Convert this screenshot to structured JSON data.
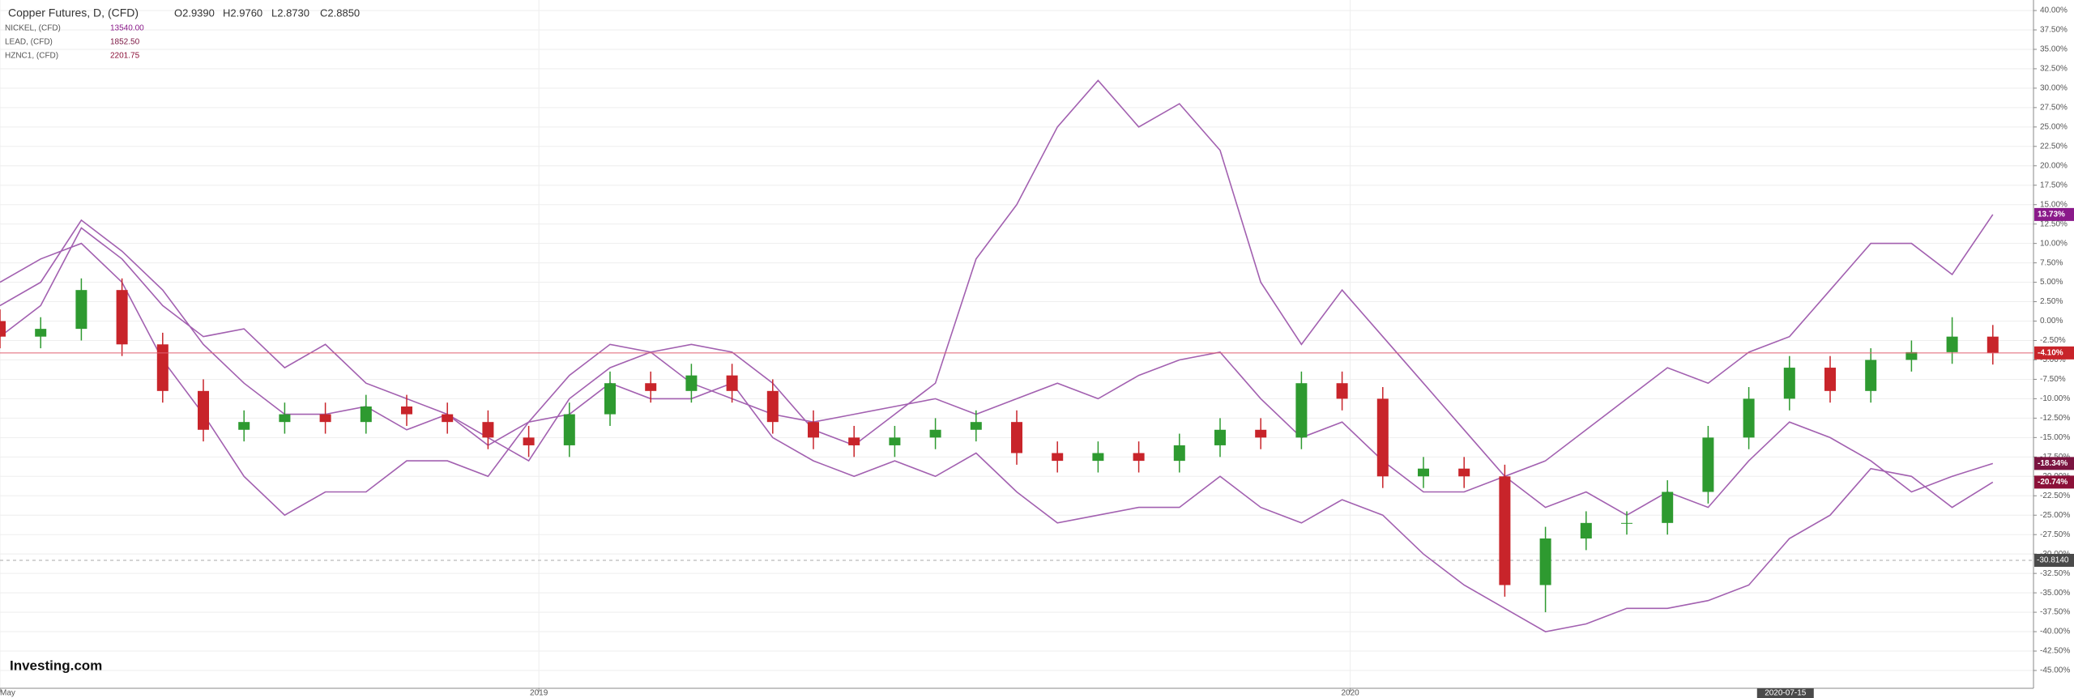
{
  "chart_data": {
    "type": "candlestick-compare",
    "header": {
      "name": "Copper Futures, D, (CFD)",
      "ohlc": [
        "O2.9390",
        "H2.9760",
        "L2.8730",
        "C2.8850"
      ]
    },
    "logo": "Investing.com",
    "x": [
      0,
      2,
      4,
      6,
      8,
      10,
      12,
      14,
      16,
      18,
      20,
      22,
      24,
      26,
      28,
      30,
      32,
      34,
      36,
      38,
      40,
      42,
      44,
      46,
      48,
      50,
      52,
      54,
      56,
      58,
      60,
      62,
      64,
      66,
      68,
      70,
      72,
      74,
      76,
      78,
      80,
      82,
      84,
      86,
      88,
      90,
      92,
      94,
      96,
      98
    ],
    "xlim": [
      0,
      100
    ],
    "xticks": [
      {
        "value": 0,
        "label": "May"
      },
      {
        "value": 26.5,
        "label": "2019"
      },
      {
        "value": 66.4,
        "label": "2020"
      }
    ],
    "ylim": [
      -45,
      40
    ],
    "yticks": [
      {
        "value": 40,
        "label": "40.00%"
      },
      {
        "value": 37.5,
        "label": "37.50%"
      },
      {
        "value": 35,
        "label": "35.00%"
      },
      {
        "value": 32.5,
        "label": "32.50%"
      },
      {
        "value": 30,
        "label": "30.00%"
      },
      {
        "value": 27.5,
        "label": "27.50%"
      },
      {
        "value": 25,
        "label": "25.00%"
      },
      {
        "value": 22.5,
        "label": "22.50%"
      },
      {
        "value": 20,
        "label": "20.00%"
      },
      {
        "value": 17.5,
        "label": "17.50%"
      },
      {
        "value": 15,
        "label": "15.00%"
      },
      {
        "value": 12.5,
        "label": "12.50%"
      },
      {
        "value": 10,
        "label": "10.00%"
      },
      {
        "value": 7.5,
        "label": "7.50%"
      },
      {
        "value": 5,
        "label": "5.00%"
      },
      {
        "value": 2.5,
        "label": "2.50%"
      },
      {
        "value": 0,
        "label": "0.00%"
      },
      {
        "value": -2.5,
        "label": "-2.50%"
      },
      {
        "value": -5,
        "label": "-5.00%"
      },
      {
        "value": -7.5,
        "label": "-7.50%"
      },
      {
        "value": -10,
        "label": "-10.00%"
      },
      {
        "value": -12.5,
        "label": "-12.50%"
      },
      {
        "value": -15,
        "label": "-15.00%"
      },
      {
        "value": -17.5,
        "label": "-17.50%"
      },
      {
        "value": -20,
        "label": "-20.00%"
      },
      {
        "value": -22.5,
        "label": "-22.50%"
      },
      {
        "value": -25,
        "label": "-25.00%"
      },
      {
        "value": -27.5,
        "label": "-27.50%"
      },
      {
        "value": -30,
        "label": "-30.00%"
      },
      {
        "value": -32.5,
        "label": "-32.50%"
      },
      {
        "value": -35,
        "label": "-35.00%"
      },
      {
        "value": -37.5,
        "label": "-37.50%"
      },
      {
        "value": -40,
        "label": "-40.00%"
      },
      {
        "value": -42.5,
        "label": "-42.50%"
      },
      {
        "value": -45,
        "label": "-45.00%"
      }
    ],
    "grid": true,
    "candles": {
      "up_color": "#2e9a30",
      "down_color": "#c8242a",
      "line_color": "#e06070",
      "last_label": "-4.10%",
      "open": [
        0,
        -2,
        -1,
        4,
        -3,
        -9,
        -14,
        -13,
        -12,
        -13,
        -11,
        -12,
        -13,
        -15,
        -16,
        -12,
        -8,
        -9,
        -7,
        -9,
        -13,
        -15,
        -16,
        -15,
        -14,
        -13,
        -17,
        -18,
        -17,
        -18,
        -16,
        -14,
        -15,
        -8,
        -10,
        -20,
        -19,
        -20,
        -34,
        -28,
        -26,
        -26,
        -22,
        -15,
        -10,
        -6,
        -9,
        -5,
        -4,
        -2
      ],
      "high": [
        1.5,
        0.5,
        5.5,
        5.5,
        -1.5,
        -7.5,
        -11.5,
        -10.5,
        -10.5,
        -9.5,
        -9.5,
        -10.5,
        -11.5,
        -13.5,
        -10.5,
        -6.5,
        -6.5,
        -5.5,
        -5.5,
        -7.5,
        -11.5,
        -13.5,
        -13.5,
        -12.5,
        -11.5,
        -11.5,
        -15.5,
        -15.5,
        -15.5,
        -14.5,
        -12.5,
        -12.5,
        -6.5,
        -6.5,
        -8.5,
        -17.5,
        -17.5,
        -18.5,
        -26.5,
        -24.5,
        -24.5,
        -20.5,
        -13.5,
        -8.5,
        -4.5,
        -4.5,
        -3.5,
        -2.5,
        0.5,
        -0.5
      ],
      "low": [
        -3.5,
        -3.5,
        -2.5,
        -4.5,
        -10.5,
        -15.5,
        -15.5,
        -14.5,
        -14.5,
        -14.5,
        -13.5,
        -14.5,
        -16.5,
        -17.5,
        -17.5,
        -13.5,
        -10.5,
        -10.5,
        -10.5,
        -14.5,
        -16.5,
        -17.5,
        -17.5,
        -16.5,
        -15.5,
        -18.5,
        -19.5,
        -19.5,
        -19.5,
        -19.5,
        -17.5,
        -16.5,
        -16.5,
        -11.5,
        -21.5,
        -21.5,
        -21.5,
        -35.5,
        -37.5,
        -29.5,
        -27.5,
        -27.5,
        -23.5,
        -16.5,
        -11.5,
        -10.5,
        -10.5,
        -6.5,
        -5.5,
        -5.6
      ],
      "close": [
        -2,
        -1,
        4,
        -3,
        -9,
        -14,
        -13,
        -12,
        -13,
        -11,
        -12,
        -13,
        -15,
        -16,
        -12,
        -8,
        -9,
        -7,
        -9,
        -13,
        -15,
        -16,
        -15,
        -14,
        -13,
        -17,
        -18,
        -17,
        -18,
        -16,
        -14,
        -15,
        -8,
        -10,
        -20,
        -19,
        -20,
        -34,
        -28,
        -26,
        -26,
        -22,
        -15,
        -10,
        -6,
        -9,
        -5,
        -4,
        -2,
        -4.1
      ]
    },
    "series": [
      {
        "name": "NICKEL, (CFD)",
        "quote": "13540.00",
        "color": "#a260b0",
        "label_color": "#8a1a8a",
        "last_label": "13.73%",
        "values": [
          -2,
          2,
          12,
          8,
          2,
          -2,
          -1,
          -6,
          -3,
          -8,
          -10,
          -12,
          -15,
          -18,
          -10,
          -6,
          -4,
          -3,
          -4,
          -8,
          -14,
          -16,
          -12,
          -8,
          8,
          15,
          25,
          31,
          25,
          28,
          22,
          5,
          -3,
          4,
          -2,
          -8,
          -14,
          -20,
          -18,
          -14,
          -10,
          -6,
          -8,
          -4,
          -2,
          4,
          10,
          10,
          6,
          13.73
        ]
      },
      {
        "name": "LEAD, (CFD)",
        "quote": "1852.50",
        "color": "#a260b0",
        "label_color": "#7a1440",
        "last_label": "-18.34%",
        "values": [
          2,
          5,
          13,
          9,
          4,
          -3,
          -8,
          -12,
          -12,
          -11,
          -14,
          -12,
          -16,
          -13,
          -7,
          -3,
          -4,
          -8,
          -10,
          -12,
          -13,
          -12,
          -11,
          -10,
          -12,
          -10,
          -8,
          -10,
          -7,
          -5,
          -4,
          -10,
          -15,
          -13,
          -18,
          -22,
          -22,
          -20,
          -24,
          -22,
          -25,
          -22,
          -24,
          -18,
          -13,
          -15,
          -18,
          -22,
          -20,
          -18.34
        ]
      },
      {
        "name": "HZNC1, (CFD)",
        "quote": "2201.75",
        "color": "#a260b0",
        "label_color": "#8b1038",
        "last_label": "-20.74%",
        "values": [
          5,
          8,
          10,
          5,
          -5,
          -12,
          -20,
          -25,
          -22,
          -22,
          -18,
          -18,
          -20,
          -13,
          -12,
          -8,
          -10,
          -10,
          -8,
          -15,
          -18,
          -20,
          -18,
          -20,
          -17,
          -22,
          -26,
          -25,
          -24,
          -24,
          -20,
          -24,
          -26,
          -23,
          -25,
          -30,
          -34,
          -37,
          -40,
          -39,
          -37,
          -37,
          -36,
          -34,
          -28,
          -25,
          -19,
          -20,
          -24,
          -20.74
        ]
      }
    ],
    "crosshair": {
      "x": 87.8,
      "x_label": "2020-07-15",
      "y": -30.814,
      "y_label": "-30.8140"
    }
  }
}
